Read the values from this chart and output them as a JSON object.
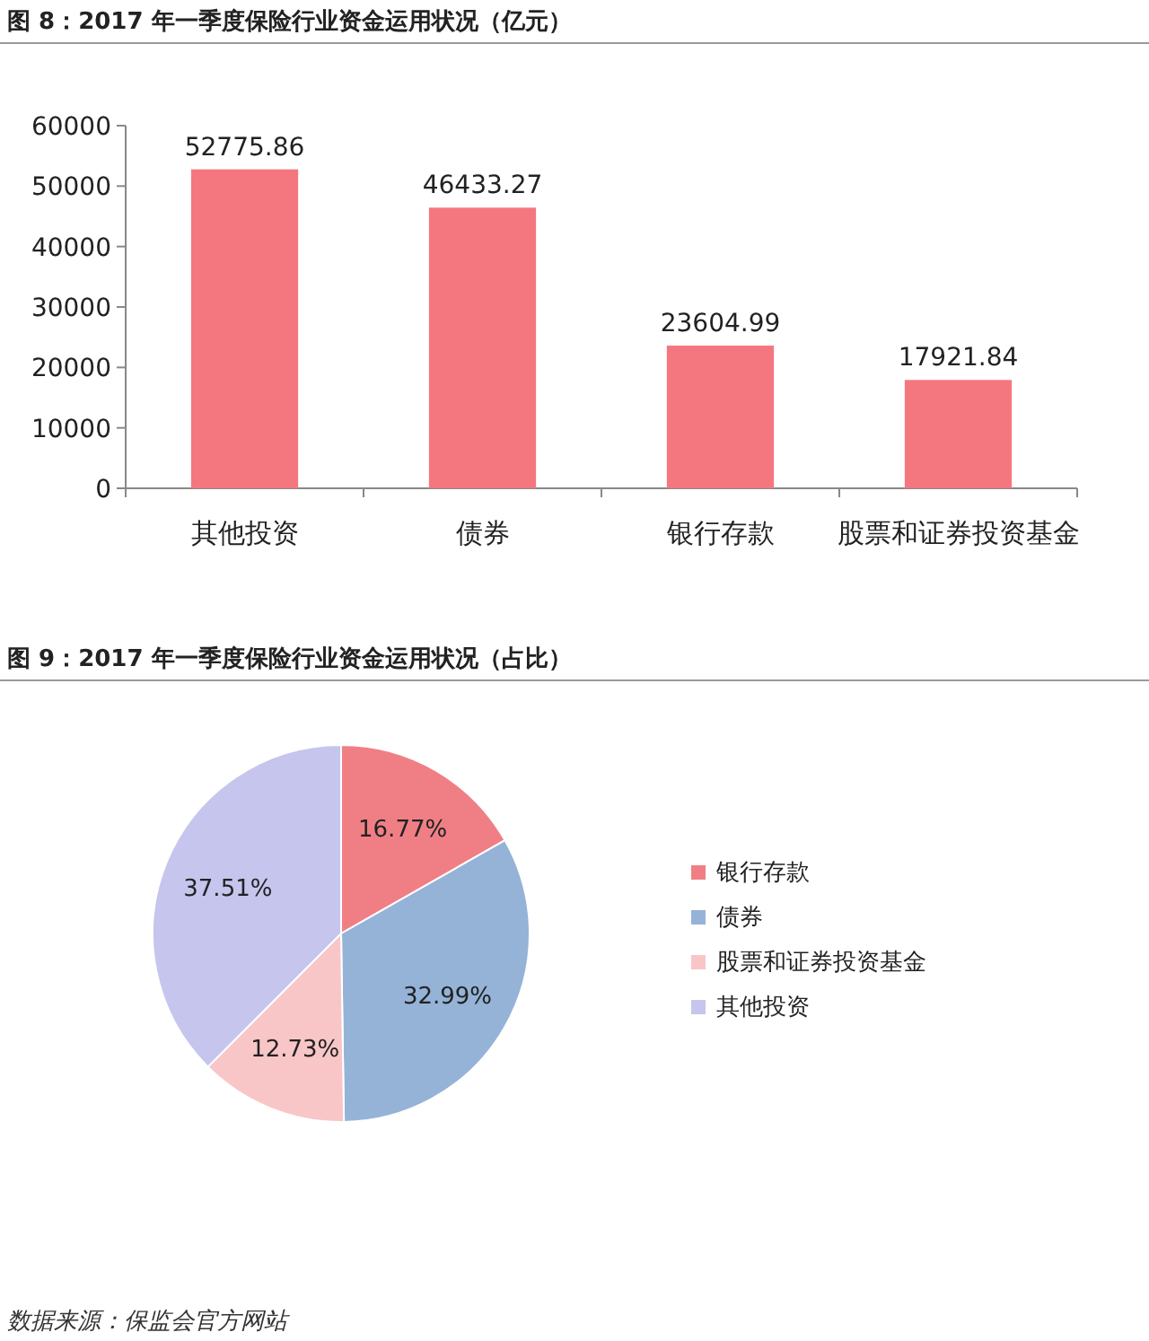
{
  "chart_data": [
    {
      "type": "bar",
      "title": "图 8：2017 年一季度保险行业资金运用状况（亿元）",
      "categories": [
        "其他投资",
        "债券",
        "银行存款",
        "股票和证券投资基金"
      ],
      "values": [
        52775.86,
        46433.27,
        23604.99,
        17921.84
      ],
      "color": "#f4777f",
      "ylim": [
        0,
        60000
      ],
      "yticks": [
        0,
        10000,
        20000,
        30000,
        40000,
        50000,
        60000
      ],
      "data_labels": true,
      "grid": false
    },
    {
      "type": "pie",
      "title": "图 9：2017 年一季度保险行业资金运用状况（占比）",
      "categories": [
        "银行存款",
        "债券",
        "股票和证券投资基金",
        "其他投资"
      ],
      "values": [
        16.77,
        32.99,
        12.73,
        37.51
      ],
      "colors": [
        "#f07f85",
        "#95b3d7",
        "#f9c6c8",
        "#c5c5ee"
      ],
      "value_labels": [
        "16.77%",
        "32.99%",
        "12.73%",
        "37.51%"
      ],
      "legend": "right",
      "annotations": [
        "数据来源：保监会官方网站"
      ]
    }
  ]
}
